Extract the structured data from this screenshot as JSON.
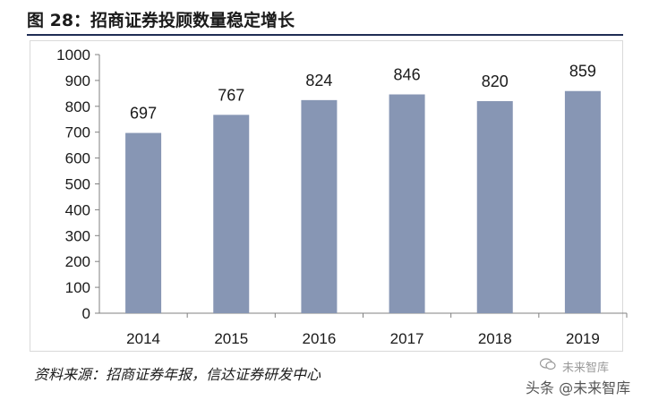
{
  "header": {
    "title": "图 28：招商证券投顾数量稳定增长"
  },
  "footer": {
    "source": "资料来源：招商证券年报，信达证券研发中心",
    "watermark_top": "未来智库",
    "watermark_bottom": "头条 @未来智库"
  },
  "colors": {
    "bar": "#8796b4",
    "axis": "#808080",
    "text": "#1a1a1a"
  },
  "chart_data": {
    "type": "bar",
    "title": "",
    "xlabel": "",
    "ylabel": "",
    "categories": [
      "2014",
      "2015",
      "2016",
      "2017",
      "2018",
      "2019"
    ],
    "values": [
      697,
      767,
      824,
      846,
      820,
      859
    ],
    "ylim": [
      0,
      1000
    ],
    "yticks": [
      0,
      100,
      200,
      300,
      400,
      500,
      600,
      700,
      800,
      900,
      1000
    ],
    "grid": false,
    "legend": "none",
    "data_labels": true
  }
}
